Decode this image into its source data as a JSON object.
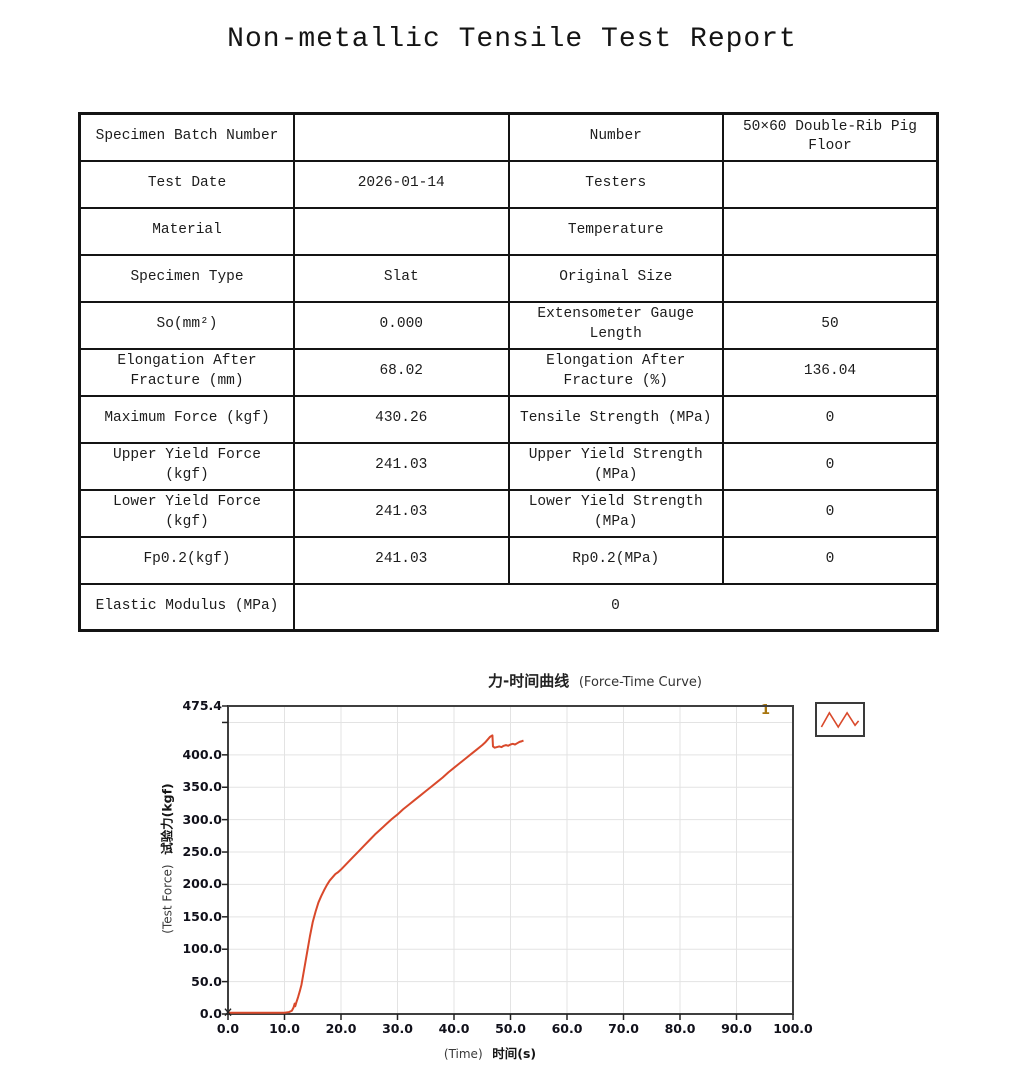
{
  "title": "Non-metallic Tensile Test Report",
  "table": {
    "rows": [
      [
        {
          "text": "Specimen Batch Number"
        },
        {
          "text": ""
        },
        {
          "text": "Number"
        },
        {
          "text": "50×60 Double-Rib Pig Floor"
        }
      ],
      [
        {
          "text": "Test Date"
        },
        {
          "text": "2026-01-14"
        },
        {
          "text": "Testers"
        },
        {
          "text": ""
        }
      ],
      [
        {
          "text": "Material"
        },
        {
          "text": ""
        },
        {
          "text": "Temperature"
        },
        {
          "text": ""
        }
      ],
      [
        {
          "text": "Specimen Type"
        },
        {
          "text": "Slat"
        },
        {
          "text": "Original Size"
        },
        {
          "text": ""
        }
      ],
      [
        {
          "text": "So(mm²)"
        },
        {
          "text": "0.000"
        },
        {
          "text": "Extensometer Gauge Length"
        },
        {
          "text": "50"
        }
      ],
      [
        {
          "text": "Elongation After Fracture (mm)"
        },
        {
          "text": "68.02"
        },
        {
          "text": "Elongation After Fracture (%)"
        },
        {
          "text": "136.04"
        }
      ],
      [
        {
          "text": "Maximum Force (kgf)"
        },
        {
          "text": "430.26"
        },
        {
          "text": "Tensile Strength (MPa)"
        },
        {
          "text": "0"
        }
      ],
      [
        {
          "text": "Upper Yield Force (kgf)"
        },
        {
          "text": "241.03"
        },
        {
          "text": "Upper Yield Strength (MPa)"
        },
        {
          "text": "0"
        }
      ],
      [
        {
          "text": "Lower Yield Force (kgf)"
        },
        {
          "text": "241.03"
        },
        {
          "text": "Lower Yield Strength (MPa)"
        },
        {
          "text": "0"
        }
      ],
      [
        {
          "text": "Fp0.2(kgf)"
        },
        {
          "text": "241.03"
        },
        {
          "text": "Rp0.2(MPa)"
        },
        {
          "text": "0"
        }
      ],
      [
        {
          "text": "Elastic Modulus (MPa)"
        },
        {
          "text": "0",
          "colspan": 3
        }
      ]
    ]
  },
  "chart": {
    "title_cjk": "力-时间曲线",
    "title_en": "(Force-Time Curve)",
    "ylabel_en": "(Test Force)",
    "ylabel_cjk": "试验力(kgf)",
    "xlabel_en": "(Time)",
    "xlabel_cjk": "时间(s)",
    "series_number_label": "1"
  },
  "colors": {
    "curve": "#d9492b",
    "grid": "#e3e3e3",
    "plot_border": "#3f3f3f",
    "tick_label": "#10101a",
    "series_number": "#a8760e",
    "origin_marker": "#222222"
  },
  "chart_data": {
    "type": "line",
    "title": "力-时间曲线 (Force-Time Curve)",
    "xlabel": "(Time) 时间(s)",
    "ylabel": "(Test Force) 试验力(kgf)",
    "xlim": [
      0,
      100
    ],
    "ylim": [
      0,
      475.4
    ],
    "grid": true,
    "legend_position": "top-right-outside",
    "x_ticks": [
      {
        "label": "0.0",
        "value": 0
      },
      {
        "label": "10.0",
        "value": 10
      },
      {
        "label": "20.0",
        "value": 20
      },
      {
        "label": "30.0",
        "value": 30
      },
      {
        "label": "40.0",
        "value": 40
      },
      {
        "label": "50.0",
        "value": 50
      },
      {
        "label": "60.0",
        "value": 60
      },
      {
        "label": "70.0",
        "value": 70
      },
      {
        "label": "80.0",
        "value": 80
      },
      {
        "label": "90.0",
        "value": 90
      },
      {
        "label": "100.0",
        "value": 100
      }
    ],
    "y_ticks": [
      {
        "label": "475.4",
        "value": 475.4
      },
      {
        "label": "",
        "value": 450
      },
      {
        "label": "400.0",
        "value": 400
      },
      {
        "label": "350.0",
        "value": 350
      },
      {
        "label": "300.0",
        "value": 300
      },
      {
        "label": "250.0",
        "value": 250
      },
      {
        "label": "200.0",
        "value": 200
      },
      {
        "label": "150.0",
        "value": 150
      },
      {
        "label": "100.0",
        "value": 100
      },
      {
        "label": "50.0",
        "value": 50
      },
      {
        "label": "0.0",
        "value": 0
      }
    ],
    "series": [
      {
        "name": "1",
        "x": [
          0,
          2,
          4,
          6,
          8,
          10,
          10.8,
          11.3,
          11.6,
          11.8,
          11.9,
          12.1,
          12.4,
          12.7,
          13,
          13.5,
          14,
          14.5,
          15,
          15.5,
          16,
          16.5,
          17,
          17.5,
          18,
          18.5,
          19,
          19.5,
          20,
          21,
          22,
          23,
          24,
          25,
          26,
          27,
          28,
          29,
          30,
          31,
          32,
          33,
          34,
          35,
          36,
          37,
          38,
          39,
          40,
          41,
          42,
          43,
          44,
          45,
          45.5,
          46,
          46.4,
          46.8,
          46.9,
          47.2,
          47.6,
          48,
          48.4,
          48.8,
          49.2,
          49.6,
          50,
          50.4,
          50.8,
          51.2,
          51.6,
          52,
          52.3
        ],
        "y": [
          2,
          2,
          2,
          2,
          2,
          2,
          3,
          5,
          10,
          16,
          12,
          18,
          26,
          35,
          45,
          70,
          95,
          120,
          142,
          158,
          172,
          182,
          191,
          199,
          206,
          211,
          216,
          219,
          223,
          232,
          241,
          250,
          259,
          268,
          277,
          285,
          293,
          301,
          308,
          316,
          323,
          330,
          337,
          344,
          351,
          358,
          365,
          373,
          380,
          387,
          394,
          401,
          408,
          415,
          419,
          424,
          428,
          430,
          413,
          411,
          412,
          413,
          412,
          414,
          415,
          414,
          416,
          417,
          416,
          418,
          420,
          421,
          422
        ]
      }
    ]
  }
}
